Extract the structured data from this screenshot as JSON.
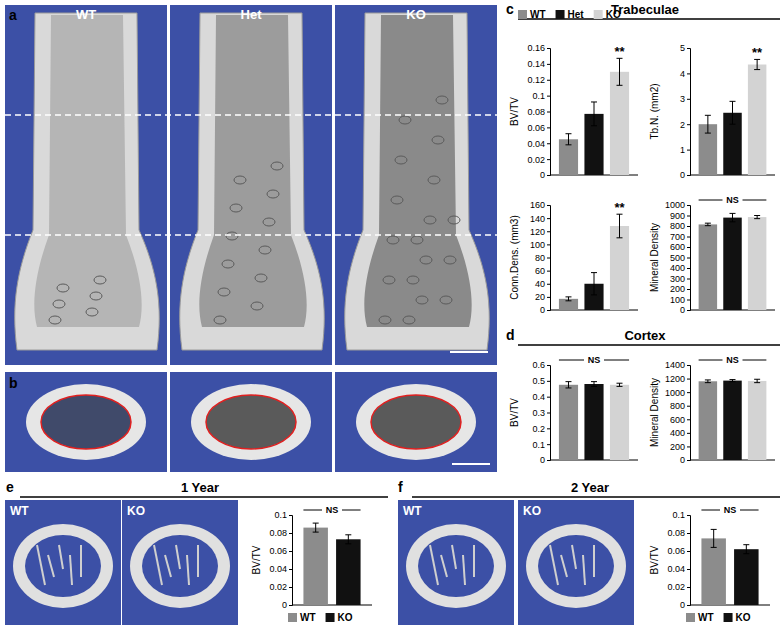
{
  "images": [
    {
      "letter": "a",
      "labels": [
        "WT",
        "Het",
        "KO"
      ]
    },
    {
      "letter": "b",
      "labels": []
    },
    {
      "letter": "e",
      "labels": [
        "WT",
        "KO"
      ]
    },
    {
      "letter": "f",
      "labels": [
        "WT",
        "KO"
      ]
    }
  ],
  "sections": [
    {
      "letter": "c",
      "title": "Trabeculae"
    },
    {
      "letter": "d",
      "title": "Cortex"
    },
    {
      "letter": "e",
      "title": "1 Year"
    },
    {
      "letter": "f",
      "title": "2 Year"
    }
  ],
  "chart_data": [
    {
      "type": "bar",
      "y_label": "BV/TV",
      "ylim": [
        0,
        0.16
      ],
      "yticks": [
        0,
        0.02,
        0.04,
        0.06,
        0.08,
        0.1,
        0.12,
        0.14,
        0.16
      ],
      "tick_labels": "y",
      "legend": "top",
      "series": [
        {
          "name": "WT",
          "color": "#8c8c8c",
          "values": [
            0.045
          ],
          "errors": [
            0.007
          ]
        },
        {
          "name": "Het",
          "color": "#111111",
          "values": [
            0.077
          ],
          "errors": [
            0.015
          ]
        },
        {
          "name": "KO",
          "color": "#d3d3d3",
          "values": [
            0.13
          ],
          "errors": [
            0.017
          ],
          "annotation": "**"
        }
      ]
    },
    {
      "type": "bar",
      "y_label": "Tb.N. (mm2)",
      "ylim": [
        0,
        5
      ],
      "yticks": [
        0,
        1,
        2,
        3,
        4,
        5
      ],
      "tick_labels": "y",
      "series": [
        {
          "color": "#8c8c8c",
          "values": [
            2.0
          ],
          "errors": [
            0.35
          ]
        },
        {
          "color": "#111111",
          "values": [
            2.45
          ],
          "errors": [
            0.45
          ]
        },
        {
          "color": "#d3d3d3",
          "values": [
            4.35
          ],
          "errors": [
            0.2
          ],
          "annotation": "**"
        }
      ]
    },
    {
      "type": "bar",
      "y_label": "Conn.Dens. (mm3)",
      "ylim": [
        0,
        160
      ],
      "yticks": [
        0,
        20,
        40,
        60,
        80,
        100,
        120,
        140,
        160
      ],
      "tick_labels": "y",
      "series": [
        {
          "color": "#8c8c8c",
          "values": [
            17
          ],
          "errors": [
            3
          ]
        },
        {
          "color": "#111111",
          "values": [
            40
          ],
          "errors": [
            17
          ]
        },
        {
          "color": "#d3d3d3",
          "values": [
            128
          ],
          "errors": [
            18
          ],
          "annotation": "**"
        }
      ]
    },
    {
      "type": "bar",
      "y_label": "Mineral Density",
      "ylim": [
        0,
        1000
      ],
      "yticks": [
        0,
        100,
        200,
        300,
        400,
        500,
        600,
        700,
        800,
        900,
        1000
      ],
      "tick_labels": "y",
      "annotation": "NS",
      "series": [
        {
          "color": "#8c8c8c",
          "values": [
            815
          ],
          "errors": [
            12
          ]
        },
        {
          "color": "#111111",
          "values": [
            880
          ],
          "errors": [
            40
          ]
        },
        {
          "color": "#d3d3d3",
          "values": [
            885
          ],
          "errors": [
            15
          ]
        }
      ]
    },
    {
      "type": "bar",
      "y_label": "BV/TV",
      "ylim": [
        0,
        0.6
      ],
      "yticks": [
        0,
        0.1,
        0.2,
        0.3,
        0.4,
        0.5,
        0.6
      ],
      "tick_labels": "y",
      "annotation": "NS",
      "series": [
        {
          "color": "#8c8c8c",
          "values": [
            0.475
          ],
          "errors": [
            0.02
          ]
        },
        {
          "color": "#111111",
          "values": [
            0.48
          ],
          "errors": [
            0.015
          ]
        },
        {
          "color": "#d3d3d3",
          "values": [
            0.475
          ],
          "errors": [
            0.01
          ]
        }
      ]
    },
    {
      "type": "bar",
      "y_label": "Mineral Density",
      "ylim": [
        0,
        1400
      ],
      "yticks": [
        0,
        200,
        400,
        600,
        800,
        1000,
        1200,
        1400
      ],
      "tick_labels": "y",
      "annotation": "NS",
      "series": [
        {
          "color": "#8c8c8c",
          "values": [
            1160
          ],
          "errors": [
            20
          ]
        },
        {
          "color": "#111111",
          "values": [
            1170
          ],
          "errors": [
            15
          ]
        },
        {
          "color": "#d3d3d3",
          "values": [
            1165
          ],
          "errors": [
            25
          ]
        }
      ]
    },
    {
      "type": "bar",
      "y_label": "BV/TV",
      "ylim": [
        0,
        0.1
      ],
      "yticks": [
        0,
        0.02,
        0.04,
        0.06,
        0.08,
        0.1
      ],
      "tick_labels": "y",
      "annotation": "NS",
      "legend": "bottom",
      "series": [
        {
          "name": "WT",
          "color": "#8c8c8c",
          "values": [
            0.086
          ],
          "errors": [
            0.005
          ]
        },
        {
          "name": "KO",
          "color": "#111111",
          "values": [
            0.073
          ],
          "errors": [
            0.005
          ]
        }
      ]
    },
    {
      "type": "bar",
      "y_label": "BV/TV",
      "ylim": [
        0,
        0.1
      ],
      "yticks": [
        0,
        0.02,
        0.04,
        0.06,
        0.08,
        0.1
      ],
      "tick_labels": "y",
      "annotation": "NS",
      "legend": "bottom",
      "series": [
        {
          "name": "WT",
          "color": "#8c8c8c",
          "values": [
            0.074
          ],
          "errors": [
            0.01
          ]
        },
        {
          "name": "KO",
          "color": "#111111",
          "values": [
            0.062
          ],
          "errors": [
            0.005
          ]
        }
      ]
    }
  ]
}
